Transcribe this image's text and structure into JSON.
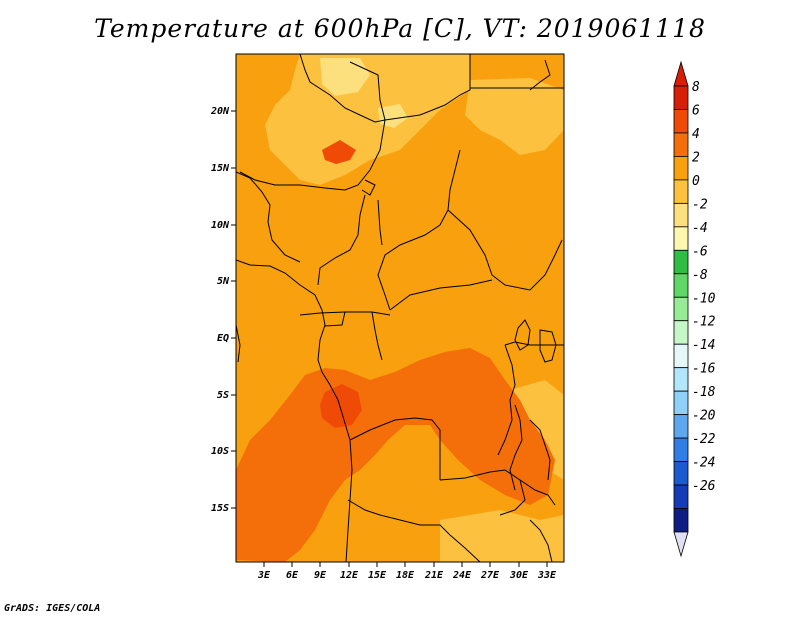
{
  "title": "Temperature at 600hPa [C], VT: 2019061118",
  "footer": "GrADS: IGES/COLA",
  "map": {
    "lat_labels": [
      "20N",
      "15N",
      "10N",
      "5N",
      "EQ",
      "5S",
      "10S",
      "15S"
    ],
    "lon_labels": [
      "3E",
      "6E",
      "9E",
      "12E",
      "15E",
      "18E",
      "21E",
      "24E",
      "27E",
      "30E",
      "33E"
    ]
  },
  "colorbar": {
    "levels": [
      "8",
      "6",
      "4",
      "2",
      "0",
      "-2",
      "-4",
      "-6",
      "-8",
      "-10",
      "-12",
      "-14",
      "-16",
      "-18",
      "-20",
      "-22",
      "-24",
      "-26"
    ],
    "colors": [
      "#d91e06",
      "#f04a07",
      "#f46e09",
      "#f8a00d",
      "#fbc13f",
      "#fde07e",
      "#fdf7b0",
      "#2fbe41",
      "#5fd867",
      "#95ec95",
      "#c6f7c7",
      "#e6f7f7",
      "#b2e6fa",
      "#8ed0f6",
      "#5da7ee",
      "#2f7ee4",
      "#1d59d1",
      "#163bb6",
      "#0d1f85"
    ],
    "top_color": "#d91e06",
    "bottom_color": "#e1e0f2"
  },
  "palette": {
    "base": "#f8a00d",
    "light": "#fbc13f",
    "mid": "#f46e09",
    "dark": "#f04a07",
    "boundary": "#000000"
  }
}
